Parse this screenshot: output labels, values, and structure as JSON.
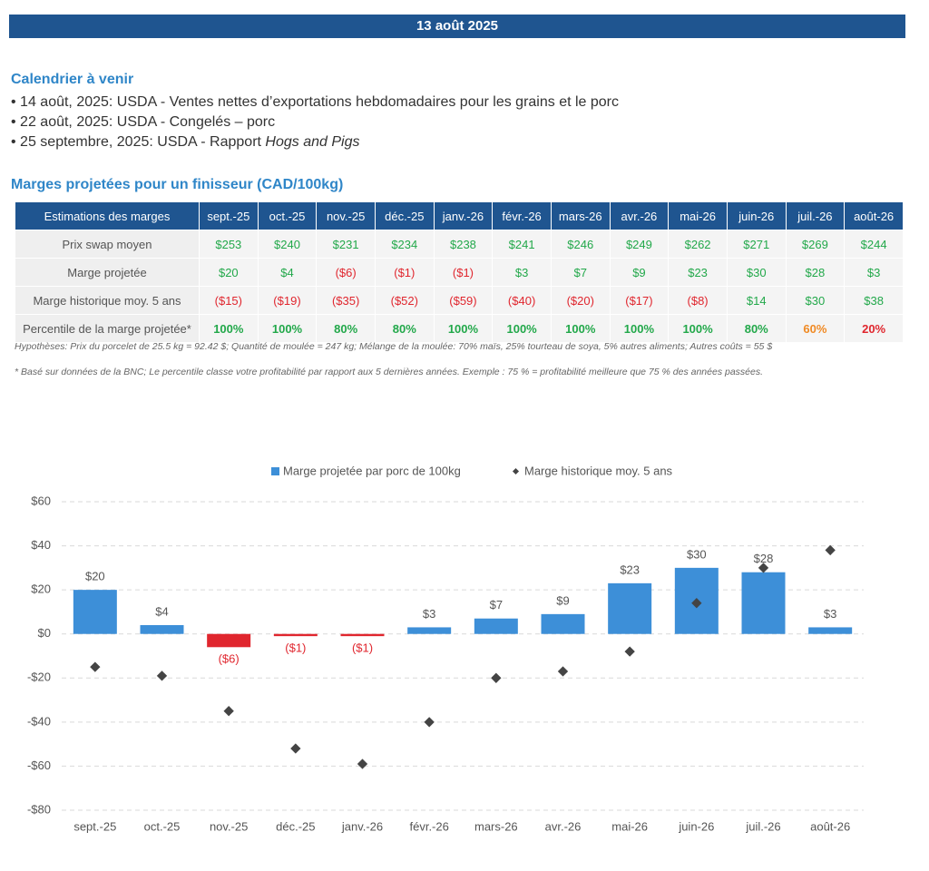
{
  "header": {
    "date": "13 août 2025"
  },
  "calendar": {
    "title": "Calendrier à venir",
    "items": [
      {
        "text": "14 août, 2025: USDA - Ventes nettes d’exportations hebdomadaires pour les grains et le porc"
      },
      {
        "text": "22 août, 2025: USDA - Congelés – porc"
      },
      {
        "text": "25 septembre, 2025: USDA - Rapport ",
        "italic": "Hogs and Pigs"
      }
    ]
  },
  "table": {
    "title": "Marges projetées pour un finisseur (CAD/100kg)",
    "header": [
      "Estimations des marges",
      "sept.-25",
      "oct.-25",
      "nov.-25",
      "déc.-25",
      "janv.-26",
      "févr.-26",
      "mars-26",
      "avr.-26",
      "mai-26",
      "juin-26",
      "juil.-26",
      "août-26"
    ],
    "rows": [
      {
        "label": "Prix swap moyen",
        "cells": [
          "$253",
          "$240",
          "$231",
          "$234",
          "$238",
          "$241",
          "$246",
          "$249",
          "$262",
          "$271",
          "$269",
          "$244"
        ],
        "colors": [
          "#22a84a",
          "#22a84a",
          "#22a84a",
          "#22a84a",
          "#22a84a",
          "#22a84a",
          "#22a84a",
          "#22a84a",
          "#22a84a",
          "#22a84a",
          "#22a84a",
          "#22a84a"
        ]
      },
      {
        "label": "Marge projetée",
        "cells": [
          "$20",
          "$4",
          "($6)",
          "($1)",
          "($1)",
          "$3",
          "$7",
          "$9",
          "$23",
          "$30",
          "$28",
          "$3"
        ],
        "colors": [
          "#22a84a",
          "#22a84a",
          "#e0262e",
          "#e0262e",
          "#e0262e",
          "#22a84a",
          "#22a84a",
          "#22a84a",
          "#22a84a",
          "#22a84a",
          "#22a84a",
          "#22a84a"
        ]
      },
      {
        "label": "Marge historique moy. 5 ans",
        "cells": [
          "($15)",
          "($19)",
          "($35)",
          "($52)",
          "($59)",
          "($40)",
          "($20)",
          "($17)",
          "($8)",
          "$14",
          "$30",
          "$38"
        ],
        "colors": [
          "#e0262e",
          "#e0262e",
          "#e0262e",
          "#e0262e",
          "#e0262e",
          "#e0262e",
          "#e0262e",
          "#e0262e",
          "#e0262e",
          "#22a84a",
          "#22a84a",
          "#22a84a"
        ]
      },
      {
        "label": "Percentile de la marge projetée*",
        "cells": [
          "100%",
          "100%",
          "80%",
          "80%",
          "100%",
          "100%",
          "100%",
          "100%",
          "100%",
          "80%",
          "60%",
          "20%"
        ],
        "colors": [
          "#22a84a",
          "#22a84a",
          "#22a84a",
          "#22a84a",
          "#22a84a",
          "#22a84a",
          "#22a84a",
          "#22a84a",
          "#22a84a",
          "#22a84a",
          "#f08a24",
          "#e0262e"
        ],
        "bold": true
      }
    ]
  },
  "notes": [
    "Hypothèses: Prix du porcelet de 25.5 kg = 92.42 $; Quantité de moulée = 247 kg; Mélange de la moulée: 70% maïs, 25% tourteau de soya, 5% autres aliments; Autres coûts = 55 $",
    "* Basé sur données de la BNC; Le percentile classe votre profitabilité par rapport aux 5 dernières années. Exemple : 75 % = profitabilité meilleure que 75 % des années passées."
  ],
  "chart_data": {
    "type": "bar",
    "categories": [
      "sept.-25",
      "oct.-25",
      "nov.-25",
      "déc.-25",
      "janv.-26",
      "févr.-26",
      "mars-26",
      "avr.-26",
      "mai-26",
      "juin-26",
      "juil.-26",
      "août-26"
    ],
    "series": [
      {
        "name": "Marge projetée par porc de 100kg",
        "color": "#3d8fd8",
        "negative_color": "#e0262e",
        "values": [
          20,
          4,
          -6,
          -1,
          -1,
          3,
          7,
          9,
          23,
          30,
          28,
          3
        ],
        "value_labels": [
          "$20",
          "$4",
          "($6)",
          "($1)",
          "($1)",
          "$3",
          "$7",
          "$9",
          "$23",
          "$30",
          "$28",
          "$3"
        ]
      },
      {
        "name": "Marge historique moy. 5 ans",
        "type": "scatter",
        "color": "#444444",
        "values": [
          -15,
          -19,
          -35,
          -52,
          -59,
          -40,
          -20,
          -17,
          -8,
          14,
          30,
          38
        ]
      }
    ],
    "ylim": [
      -80,
      60
    ],
    "yticks": [
      {
        "value": -80,
        "label": "-$80"
      },
      {
        "value": -60,
        "label": "-$60"
      },
      {
        "value": -40,
        "label": "-$40"
      },
      {
        "value": -20,
        "label": "-$20"
      },
      {
        "value": 0,
        "label": "$0"
      },
      {
        "value": 20,
        "label": "$20"
      },
      {
        "value": 40,
        "label": "$40"
      },
      {
        "value": 60,
        "label": "$60"
      }
    ],
    "grid": true,
    "legend": "top"
  }
}
